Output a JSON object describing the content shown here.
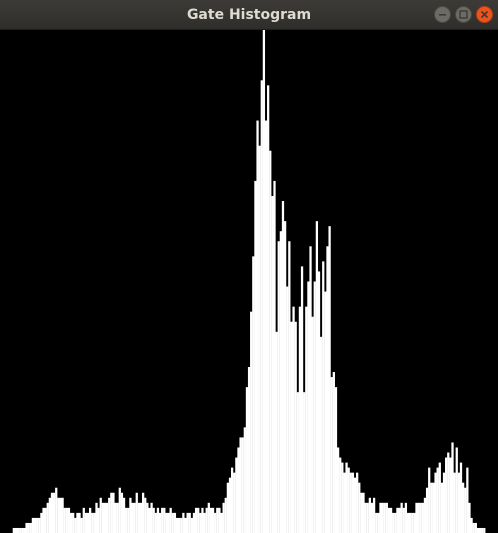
{
  "window": {
    "title": "Gate Histogram",
    "controls": [
      "minimize-icon",
      "maximize-icon",
      "close-icon"
    ],
    "colors": {
      "titlebar": "#3c3b37",
      "close": "#e9541f",
      "background": "#000000",
      "bars": "#ffffff"
    }
  },
  "chart_data": {
    "type": "bar",
    "title": "",
    "xlabel": "",
    "ylabel": "",
    "ylim": [
      0,
      100
    ],
    "grid": false,
    "values": [
      0,
      0,
      0,
      0,
      0,
      0,
      1,
      1,
      1,
      1,
      1,
      1,
      2,
      2,
      2,
      3,
      3,
      3,
      3,
      4,
      5,
      5,
      6,
      7,
      8,
      8,
      9,
      7,
      7,
      7,
      5,
      5,
      5,
      4,
      4,
      3,
      4,
      4,
      3,
      5,
      4,
      4,
      5,
      4,
      4,
      6,
      5,
      7,
      6,
      6,
      6,
      7,
      8,
      8,
      6,
      6,
      9,
      8,
      7,
      5,
      5,
      7,
      6,
      6,
      8,
      6,
      6,
      8,
      7,
      6,
      5,
      6,
      5,
      4,
      5,
      4,
      5,
      5,
      4,
      4,
      5,
      4,
      4,
      3,
      3,
      3,
      4,
      3,
      4,
      4,
      3,
      4,
      5,
      5,
      4,
      5,
      4,
      5,
      6,
      5,
      5,
      4,
      5,
      5,
      4,
      6,
      7,
      10,
      11,
      13,
      12,
      15,
      17,
      19,
      19,
      21,
      29,
      33,
      44,
      55,
      70,
      82,
      77,
      90,
      100,
      82,
      89,
      76,
      67,
      70,
      40,
      58,
      60,
      66,
      62,
      49,
      58,
      42,
      45,
      42,
      28,
      45,
      53,
      28,
      45,
      50,
      57,
      43,
      50,
      62,
      52,
      39,
      54,
      48,
      57,
      61,
      31,
      32,
      29,
      17,
      15,
      14,
      12,
      14,
      13,
      12,
      12,
      11,
      12,
      10,
      8,
      8,
      6,
      6,
      7,
      6,
      7,
      4,
      4,
      6,
      6,
      6,
      6,
      5,
      5,
      4,
      4,
      5,
      5,
      6,
      5,
      6,
      4,
      4,
      4,
      4,
      6,
      6,
      6,
      6,
      7,
      9,
      13,
      10,
      10,
      12,
      13,
      14,
      10,
      12,
      15,
      16,
      15,
      18,
      12,
      17,
      12,
      14,
      10,
      9,
      13,
      6,
      3,
      2,
      2,
      1,
      1,
      1,
      1,
      0,
      0,
      0,
      0,
      0,
      0
    ]
  }
}
